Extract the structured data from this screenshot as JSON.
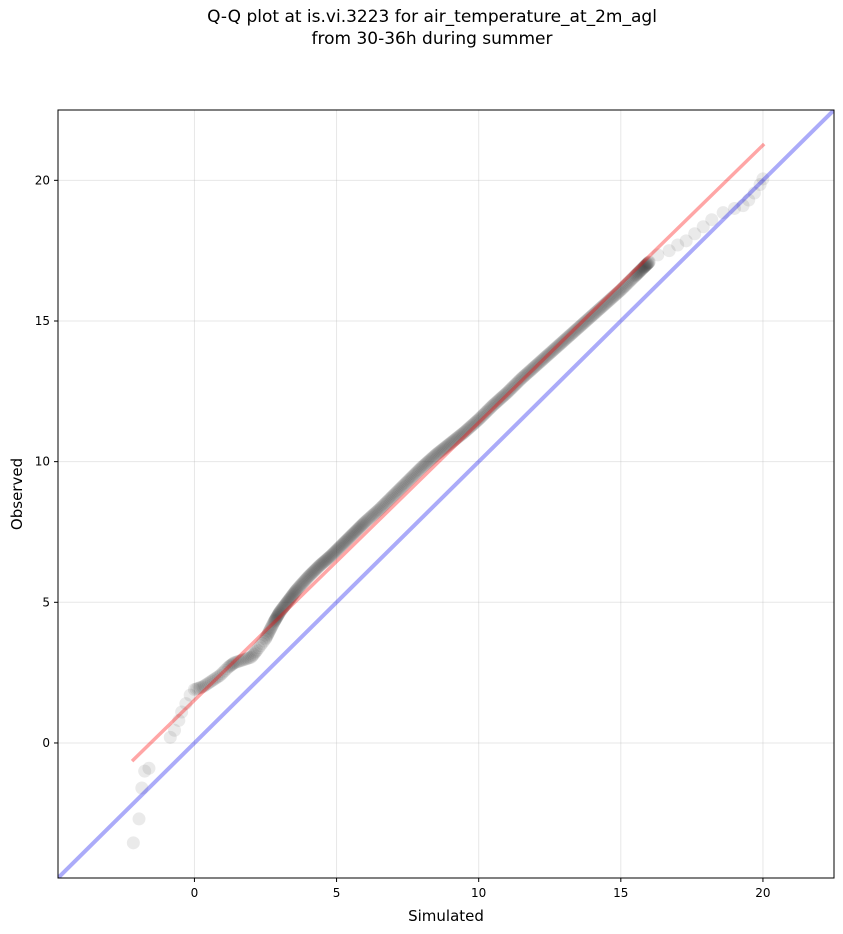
{
  "chart_data": {
    "type": "scatter",
    "title_lines": [
      "Q-Q plot at is.vi.3223 for air_temperature_at_2m_agl",
      "from 30-36h during summer"
    ],
    "xlabel": "Simulated",
    "ylabel": "Observed",
    "xlim": [
      -4.8,
      22.5
    ],
    "ylim": [
      -4.8,
      22.5
    ],
    "xticks": [
      0,
      5,
      10,
      15,
      20
    ],
    "yticks": [
      0,
      5,
      10,
      15,
      20
    ],
    "grid": true,
    "series": [
      {
        "role": "quantile points",
        "color": "#333333",
        "x": [
          -2.15,
          -1.95,
          -1.85,
          -1.75,
          -1.6,
          -0.85,
          -0.7,
          -0.55,
          -0.45,
          -0.3,
          -0.15,
          0.0,
          0.3,
          0.6,
          0.9,
          1.2,
          1.4,
          1.7,
          2.0,
          2.2,
          2.5,
          2.8,
          3.0,
          3.3,
          3.6,
          4.0,
          4.4,
          4.8,
          5.2,
          5.6,
          6.0,
          6.5,
          7.0,
          7.5,
          8.0,
          8.5,
          9.0,
          9.5,
          10.0,
          10.5,
          11.0,
          11.5,
          12.0,
          12.5,
          13.0,
          13.5,
          14.0,
          14.5,
          15.0,
          15.5,
          15.8,
          16.0,
          16.3,
          16.7,
          17.0,
          17.3,
          17.6,
          17.9,
          18.2,
          18.6,
          19.0,
          19.3,
          19.5,
          19.7,
          19.9,
          20.0
        ],
        "y": [
          -3.55,
          -2.7,
          -1.6,
          -1.0,
          -0.9,
          0.2,
          0.45,
          0.8,
          1.1,
          1.4,
          1.7,
          1.9,
          2.0,
          2.2,
          2.4,
          2.7,
          2.85,
          2.95,
          3.05,
          3.3,
          3.7,
          4.3,
          4.65,
          5.05,
          5.45,
          5.9,
          6.3,
          6.65,
          7.05,
          7.45,
          7.85,
          8.3,
          8.8,
          9.3,
          9.8,
          10.25,
          10.65,
          11.05,
          11.5,
          12.0,
          12.45,
          12.95,
          13.4,
          13.85,
          14.3,
          14.75,
          15.2,
          15.65,
          16.1,
          16.6,
          16.9,
          17.1,
          17.35,
          17.5,
          17.7,
          17.85,
          18.1,
          18.35,
          18.6,
          18.85,
          19.0,
          19.1,
          19.3,
          19.55,
          19.85,
          20.05
        ]
      },
      {
        "role": "fit line",
        "color": "#ff0000",
        "x": [
          -2.15,
          20.0
        ],
        "y": [
          -0.6,
          21.25
        ]
      },
      {
        "role": "1:1 line",
        "color": "#0000ee",
        "x": [
          -4.8,
          22.5
        ],
        "y": [
          -4.8,
          22.5
        ]
      }
    ]
  }
}
